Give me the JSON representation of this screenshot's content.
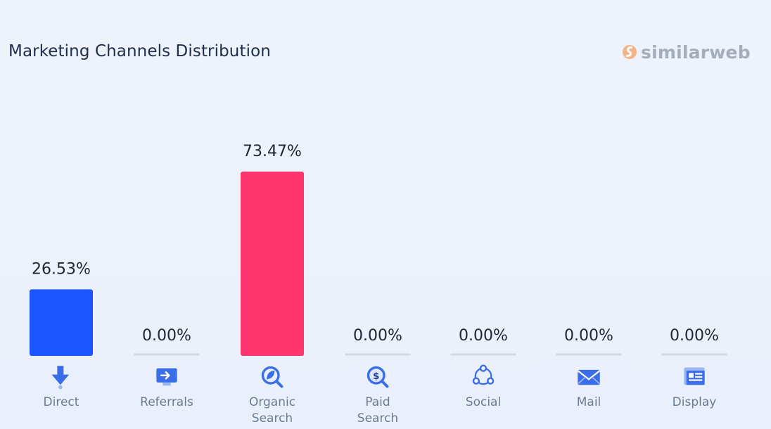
{
  "header": {
    "title": "Marketing Channels Distribution",
    "brand": "similarweb"
  },
  "colors": {
    "direct": "#1b56fd",
    "organic": "#ff3570",
    "zero_line": "#d2d7e0",
    "value_text": "#1f2532",
    "label_text": "#6b7a90",
    "icon_blue": "#3a6ee8",
    "brand_orange": "#f0a36a"
  },
  "chart_data": {
    "type": "bar",
    "categories": [
      "Direct",
      "Referrals",
      "Organic Search",
      "Paid Search",
      "Social",
      "Mail",
      "Display"
    ],
    "category_lines": [
      [
        "Direct"
      ],
      [
        "Referrals"
      ],
      [
        "Organic",
        "Search"
      ],
      [
        "Paid",
        "Search"
      ],
      [
        "Social"
      ],
      [
        "Mail"
      ],
      [
        "Display"
      ]
    ],
    "values": [
      26.53,
      0.0,
      73.47,
      0.0,
      0.0,
      0.0,
      0.0
    ],
    "value_labels": [
      "26.53%",
      "0.00%",
      "73.47%",
      "0.00%",
      "0.00%",
      "0.00%",
      "0.00%"
    ],
    "icons": [
      "direct-arrow-icon",
      "referrals-monitor-icon",
      "organic-search-icon",
      "paid-search-icon",
      "social-share-icon",
      "mail-envelope-icon",
      "display-screen-icon"
    ],
    "bar_colors": [
      "#1b56fd",
      "#1b56fd",
      "#ff3570",
      "#1b56fd",
      "#1b56fd",
      "#1b56fd",
      "#1b56fd"
    ],
    "title": "Marketing Channels Distribution",
    "xlabel": "",
    "ylabel": "",
    "ylim": [
      0,
      100
    ],
    "grid": false,
    "legend": "none"
  }
}
